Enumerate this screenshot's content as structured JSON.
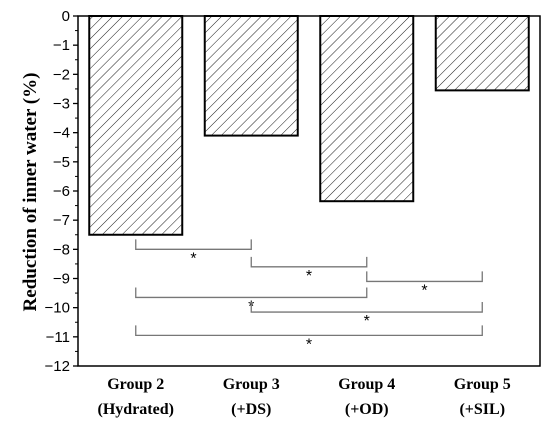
{
  "chart_data": {
    "type": "bar",
    "title": "",
    "xlabel": "",
    "ylabel": "Reduction of inner water (%)",
    "ylim": [
      -12,
      0
    ],
    "yticks": [
      0,
      -1,
      -2,
      -3,
      -4,
      -5,
      -6,
      -7,
      -8,
      -9,
      -10,
      -11,
      -12
    ],
    "categories": [
      {
        "line1": "Group 2",
        "line2": "(Hydrated)"
      },
      {
        "line1": "Group 3",
        "line2": "(+DS)"
      },
      {
        "line1": "Group 4",
        "line2": "(+OD)"
      },
      {
        "line1": "Group 5",
        "line2": "(+SIL)"
      }
    ],
    "values": [
      -7.5,
      -4.1,
      -6.35,
      -2.55
    ],
    "bar_pattern": "diagonal-hatch",
    "grid": false,
    "significance": [
      {
        "from": 0,
        "to": 1,
        "y": -8.0,
        "label": "*"
      },
      {
        "from": 1,
        "to": 2,
        "y": -8.6,
        "label": "*"
      },
      {
        "from": 2,
        "to": 3,
        "y": -9.1,
        "label": "*"
      },
      {
        "from": 0,
        "to": 2,
        "y": -9.65,
        "label": "*"
      },
      {
        "from": 1,
        "to": 3,
        "y": -10.15,
        "label": "*"
      },
      {
        "from": 0,
        "to": 3,
        "y": -10.95,
        "label": "*"
      }
    ]
  }
}
